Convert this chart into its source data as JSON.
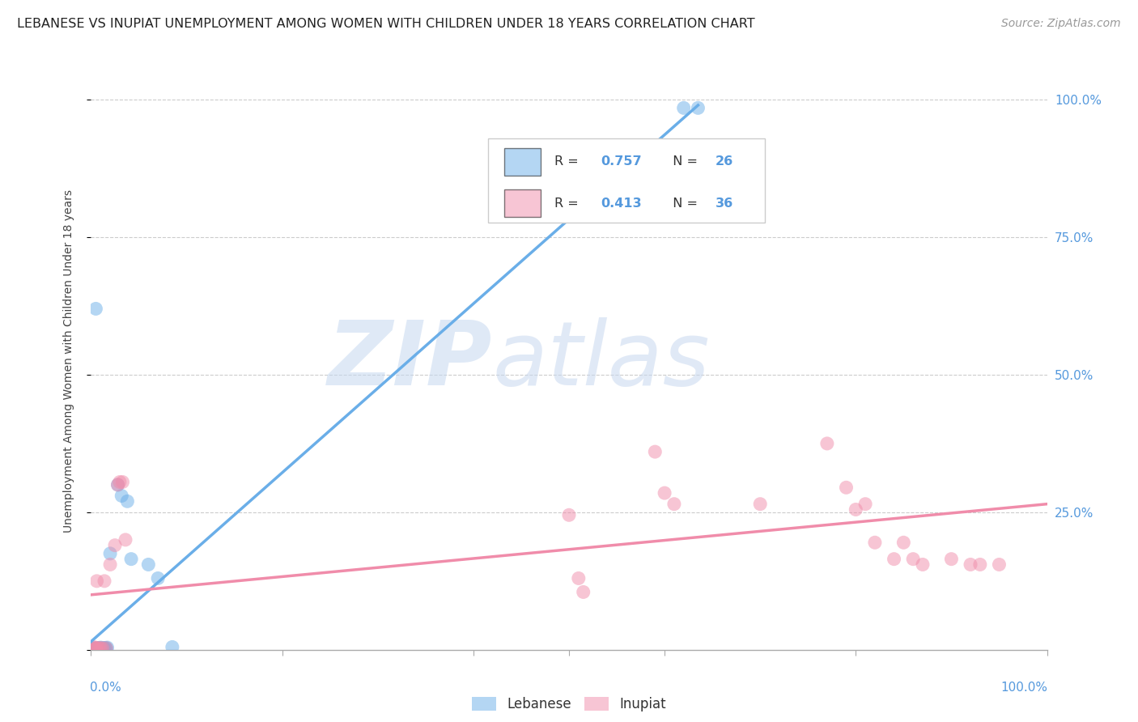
{
  "title": "LEBANESE VS INUPIAT UNEMPLOYMENT AMONG WOMEN WITH CHILDREN UNDER 18 YEARS CORRELATION CHART",
  "source": "Source: ZipAtlas.com",
  "ylabel": "Unemployment Among Women with Children Under 18 years",
  "watermark": "ZIPatlas",
  "legend_bottom": [
    "Lebanese",
    "Inupiat"
  ],
  "blue_scatter": [
    [
      0.002,
      0.002
    ],
    [
      0.003,
      0.003
    ],
    [
      0.004,
      0.002
    ],
    [
      0.005,
      0.001
    ],
    [
      0.006,
      0.003
    ],
    [
      0.007,
      0.002
    ],
    [
      0.008,
      0.003
    ],
    [
      0.009,
      0.003
    ],
    [
      0.01,
      0.004
    ],
    [
      0.012,
      0.003
    ],
    [
      0.013,
      0.003
    ],
    [
      0.014,
      0.002
    ],
    [
      0.015,
      0.003
    ],
    [
      0.016,
      0.003
    ],
    [
      0.017,
      0.004
    ],
    [
      0.02,
      0.175
    ],
    [
      0.028,
      0.3
    ],
    [
      0.032,
      0.28
    ],
    [
      0.038,
      0.27
    ],
    [
      0.042,
      0.165
    ],
    [
      0.06,
      0.155
    ],
    [
      0.07,
      0.13
    ],
    [
      0.085,
      0.005
    ],
    [
      0.005,
      0.62
    ],
    [
      0.62,
      0.985
    ],
    [
      0.635,
      0.985
    ]
  ],
  "pink_scatter": [
    [
      0.002,
      0.003
    ],
    [
      0.003,
      0.005
    ],
    [
      0.005,
      0.003
    ],
    [
      0.006,
      0.003
    ],
    [
      0.008,
      0.003
    ],
    [
      0.01,
      0.003
    ],
    [
      0.012,
      0.003
    ],
    [
      0.014,
      0.125
    ],
    [
      0.016,
      0.003
    ],
    [
      0.02,
      0.155
    ],
    [
      0.025,
      0.19
    ],
    [
      0.028,
      0.3
    ],
    [
      0.03,
      0.305
    ],
    [
      0.033,
      0.305
    ],
    [
      0.036,
      0.2
    ],
    [
      0.006,
      0.125
    ],
    [
      0.5,
      0.245
    ],
    [
      0.51,
      0.13
    ],
    [
      0.515,
      0.105
    ],
    [
      0.59,
      0.36
    ],
    [
      0.6,
      0.285
    ],
    [
      0.61,
      0.265
    ],
    [
      0.7,
      0.265
    ],
    [
      0.77,
      0.375
    ],
    [
      0.79,
      0.295
    ],
    [
      0.8,
      0.255
    ],
    [
      0.81,
      0.265
    ],
    [
      0.82,
      0.195
    ],
    [
      0.84,
      0.165
    ],
    [
      0.85,
      0.195
    ],
    [
      0.86,
      0.165
    ],
    [
      0.87,
      0.155
    ],
    [
      0.9,
      0.165
    ],
    [
      0.92,
      0.155
    ],
    [
      0.93,
      0.155
    ],
    [
      0.95,
      0.155
    ]
  ],
  "blue_line_x": [
    0.0,
    0.635
  ],
  "blue_line_y": [
    0.015,
    0.99
  ],
  "pink_line_x": [
    0.0,
    1.0
  ],
  "pink_line_y": [
    0.1,
    0.265
  ],
  "ytick_vals": [
    0.0,
    0.25,
    0.5,
    0.75,
    1.0
  ],
  "ytick_labels_right": [
    "",
    "25.0%",
    "50.0%",
    "75.0%",
    "100.0%"
  ],
  "xlim": [
    0.0,
    1.0
  ],
  "ylim": [
    0.0,
    1.05
  ],
  "title_color": "#222222",
  "source_color": "#999999",
  "blue_color": "#6aaee8",
  "pink_color": "#f08caa",
  "grid_color": "#cccccc",
  "right_tick_color": "#5599dd",
  "bottom_tick_color": "#5599dd",
  "title_fontsize": 11.5,
  "source_fontsize": 10,
  "label_fontsize": 10,
  "tick_fontsize": 11
}
